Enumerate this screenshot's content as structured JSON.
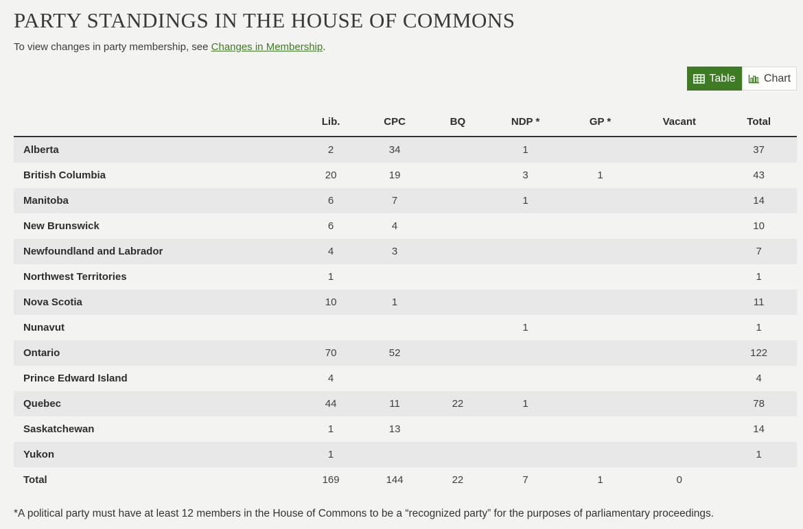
{
  "page": {
    "title": "PARTY STANDINGS IN THE HOUSE OF COMMONS",
    "subtitle_prefix": "To view changes in party membership, see ",
    "subtitle_link": "Changes in Membership",
    "subtitle_suffix": ".",
    "footnote": "*A political party must have at least 12 members in the House of Commons to be a “recognized party” for the purposes of parliamentary proceedings."
  },
  "toggle": {
    "table_label": "Table",
    "chart_label": "Chart"
  },
  "colors": {
    "accent_green": "#3e7c24",
    "row_stripe": "#e8e8e8",
    "page_background": "#f3f3f1",
    "header_border": "#333333"
  },
  "table": {
    "columns": [
      "",
      "Lib.",
      "CPC",
      "BQ",
      "NDP *",
      "GP *",
      "Vacant",
      "Total"
    ],
    "rows": [
      {
        "label": "Alberta",
        "values": [
          "2",
          "34",
          "",
          "1",
          "",
          "",
          "37"
        ]
      },
      {
        "label": "British Columbia",
        "values": [
          "20",
          "19",
          "",
          "3",
          "1",
          "",
          "43"
        ]
      },
      {
        "label": "Manitoba",
        "values": [
          "6",
          "7",
          "",
          "1",
          "",
          "",
          "14"
        ]
      },
      {
        "label": "New Brunswick",
        "values": [
          "6",
          "4",
          "",
          "",
          "",
          "",
          "10"
        ]
      },
      {
        "label": "Newfoundland and Labrador",
        "values": [
          "4",
          "3",
          "",
          "",
          "",
          "",
          "7"
        ]
      },
      {
        "label": "Northwest Territories",
        "values": [
          "1",
          "",
          "",
          "",
          "",
          "",
          "1"
        ]
      },
      {
        "label": "Nova Scotia",
        "values": [
          "10",
          "1",
          "",
          "",
          "",
          "",
          "11"
        ]
      },
      {
        "label": "Nunavut",
        "values": [
          "",
          "",
          "",
          "1",
          "",
          "",
          "1"
        ]
      },
      {
        "label": "Ontario",
        "values": [
          "70",
          "52",
          "",
          "",
          "",
          "",
          "122"
        ]
      },
      {
        "label": "Prince Edward Island",
        "values": [
          "4",
          "",
          "",
          "",
          "",
          "",
          "4"
        ]
      },
      {
        "label": "Quebec",
        "values": [
          "44",
          "11",
          "22",
          "1",
          "",
          "",
          "78"
        ]
      },
      {
        "label": "Saskatchewan",
        "values": [
          "1",
          "13",
          "",
          "",
          "",
          "",
          "14"
        ]
      },
      {
        "label": "Yukon",
        "values": [
          "1",
          "",
          "",
          "",
          "",
          "",
          "1"
        ]
      },
      {
        "label": "Total",
        "values": [
          "169",
          "144",
          "22",
          "7",
          "1",
          "0",
          ""
        ]
      }
    ]
  }
}
